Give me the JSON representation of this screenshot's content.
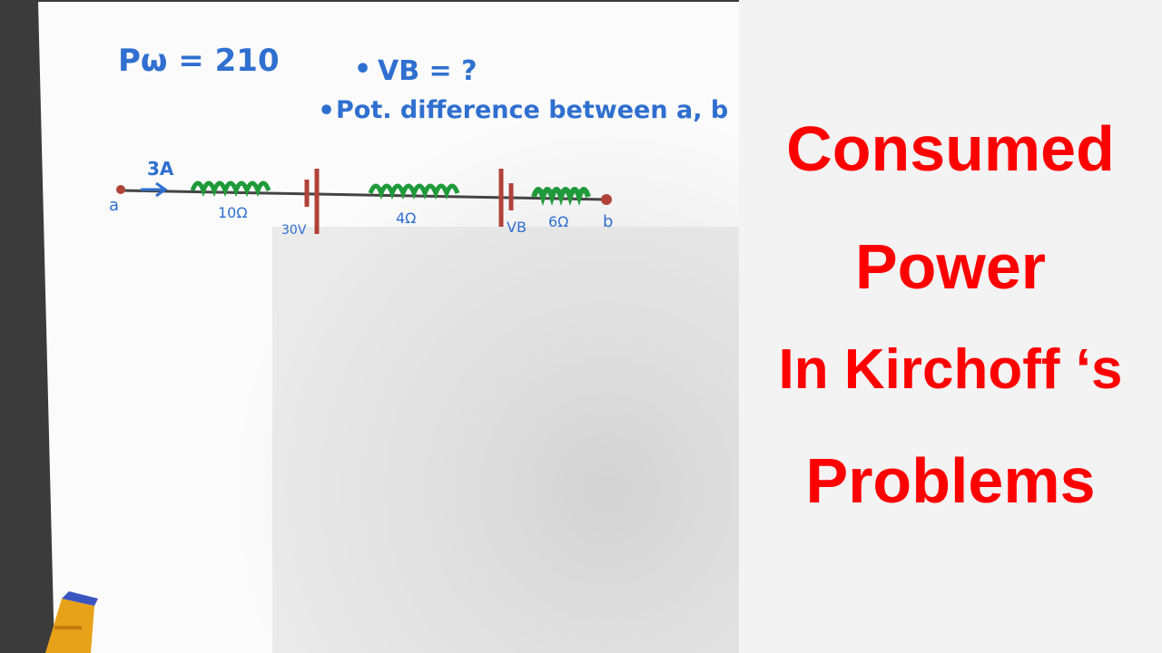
{
  "photo": {
    "notes": {
      "power_given": "Pω = 210",
      "question_vb": "VB = ?",
      "question_potential": "Pot. difference between a, b"
    },
    "circuit": {
      "current": "3A",
      "node_a": "a",
      "node_b": "b",
      "resistor_1": "10Ω",
      "battery_1": "30V",
      "resistor_2": "4Ω",
      "battery_2": "VB",
      "resistor_3": "6Ω"
    },
    "colors": {
      "ink_blue": "#2f6fd0",
      "resistor_green": "#1f9a3a",
      "battery_red": "#b0423a",
      "wire": "#444444"
    }
  },
  "title": {
    "lines": [
      "Consumed",
      "Power",
      "In Kirchoff ‘s",
      "Problems"
    ],
    "color": "#ff0000"
  }
}
